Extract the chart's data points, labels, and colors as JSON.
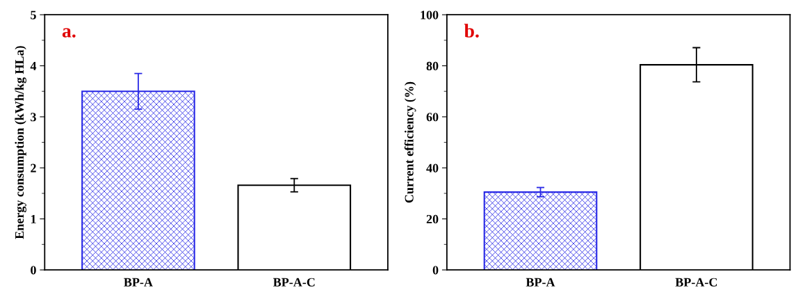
{
  "chart_data": [
    {
      "type": "bar",
      "categories": [
        "BP-A",
        "BP-A-C"
      ],
      "values": [
        3.5,
        1.66
      ],
      "errors": [
        0.35,
        0.13
      ],
      "colors": [
        "#2828e6",
        "#000000"
      ],
      "ylabel": "Energy consumption (kWh/kg HLa)",
      "ylim": [
        0,
        5
      ],
      "yticks": [
        0,
        1,
        2,
        3,
        4,
        5
      ],
      "annotations": [
        "a."
      ]
    },
    {
      "type": "bar",
      "categories": [
        "BP-A",
        "BP-A-C"
      ],
      "values": [
        30.5,
        80.4
      ],
      "errors": [
        1.8,
        6.7
      ],
      "colors": [
        "#2828e6",
        "#000000"
      ],
      "ylabel": "Current efficiency (%)",
      "ylim": [
        0,
        100
      ],
      "yticks": [
        0,
        20,
        40,
        60,
        80,
        100
      ],
      "annotations": [
        "b."
      ]
    }
  ]
}
